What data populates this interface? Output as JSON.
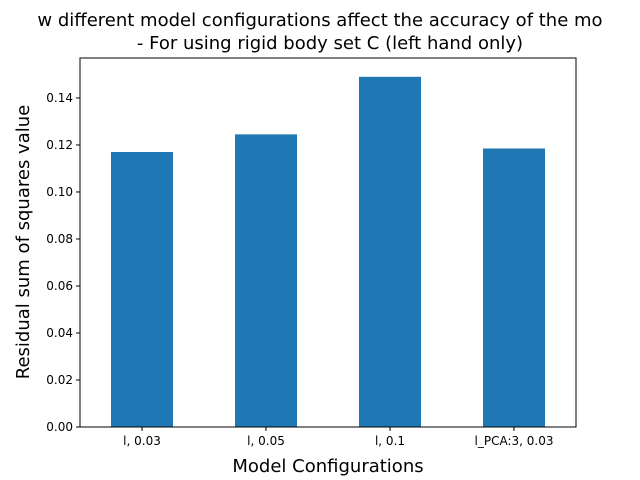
{
  "chart_data": {
    "type": "bar",
    "title_line1": "w different model configurations affect the accuracy of the mo",
    "title_line2": "- For using rigid body set C (left hand only)",
    "xlabel": "Model Configurations",
    "ylabel": "Residual sum of squares value",
    "categories": [
      "l, 0.03",
      "l, 0.05",
      "l, 0.1",
      "l_PCA:3, 0.03"
    ],
    "values": [
      0.117,
      0.1245,
      0.149,
      0.1185
    ],
    "ylim": [
      0,
      0.157
    ],
    "yticks": [
      0.0,
      0.02,
      0.04,
      0.06,
      0.08,
      0.1,
      0.12,
      0.14
    ],
    "ytick_labels": [
      "0.00",
      "0.02",
      "0.04",
      "0.06",
      "0.08",
      "0.10",
      "0.12",
      "0.14"
    ],
    "bar_color": "#1f77b4",
    "grid": false,
    "legend": "none"
  }
}
